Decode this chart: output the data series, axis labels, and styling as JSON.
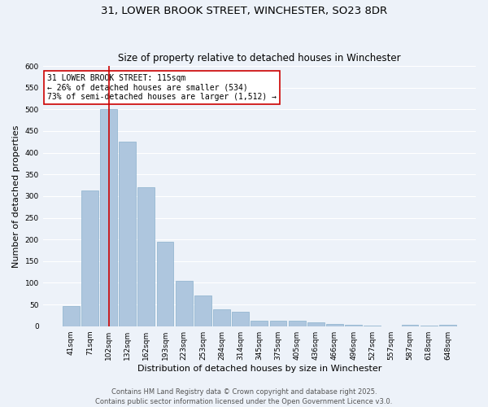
{
  "title_line1": "31, LOWER BROOK STREET, WINCHESTER, SO23 8DR",
  "title_line2": "Size of property relative to detached houses in Winchester",
  "xlabel": "Distribution of detached houses by size in Winchester",
  "ylabel": "Number of detached properties",
  "categories": [
    "41sqm",
    "71sqm",
    "102sqm",
    "132sqm",
    "162sqm",
    "193sqm",
    "223sqm",
    "253sqm",
    "284sqm",
    "314sqm",
    "345sqm",
    "375sqm",
    "405sqm",
    "436sqm",
    "466sqm",
    "496sqm",
    "527sqm",
    "557sqm",
    "587sqm",
    "618sqm",
    "648sqm"
  ],
  "values": [
    47,
    313,
    500,
    425,
    320,
    195,
    105,
    70,
    38,
    33,
    13,
    12,
    12,
    9,
    6,
    3,
    1,
    0,
    3,
    1,
    3
  ],
  "bar_color": "#aec6de",
  "bar_edge_color": "#8ab0cc",
  "vline_x_index": 2,
  "vline_color": "#cc0000",
  "annotation_text": "31 LOWER BROOK STREET: 115sqm\n← 26% of detached houses are smaller (534)\n73% of semi-detached houses are larger (1,512) →",
  "annotation_box_color": "#ffffff",
  "annotation_box_edge_color": "#cc0000",
  "ylim": [
    0,
    600
  ],
  "yticks": [
    0,
    50,
    100,
    150,
    200,
    250,
    300,
    350,
    400,
    450,
    500,
    550,
    600
  ],
  "background_color": "#edf2f9",
  "grid_color": "#ffffff",
  "footer_text": "Contains HM Land Registry data © Crown copyright and database right 2025.\nContains public sector information licensed under the Open Government Licence v3.0.",
  "title_fontsize": 9.5,
  "subtitle_fontsize": 8.5,
  "tick_fontsize": 6.5,
  "ylabel_fontsize": 8,
  "xlabel_fontsize": 8,
  "annotation_fontsize": 7,
  "footer_fontsize": 6
}
